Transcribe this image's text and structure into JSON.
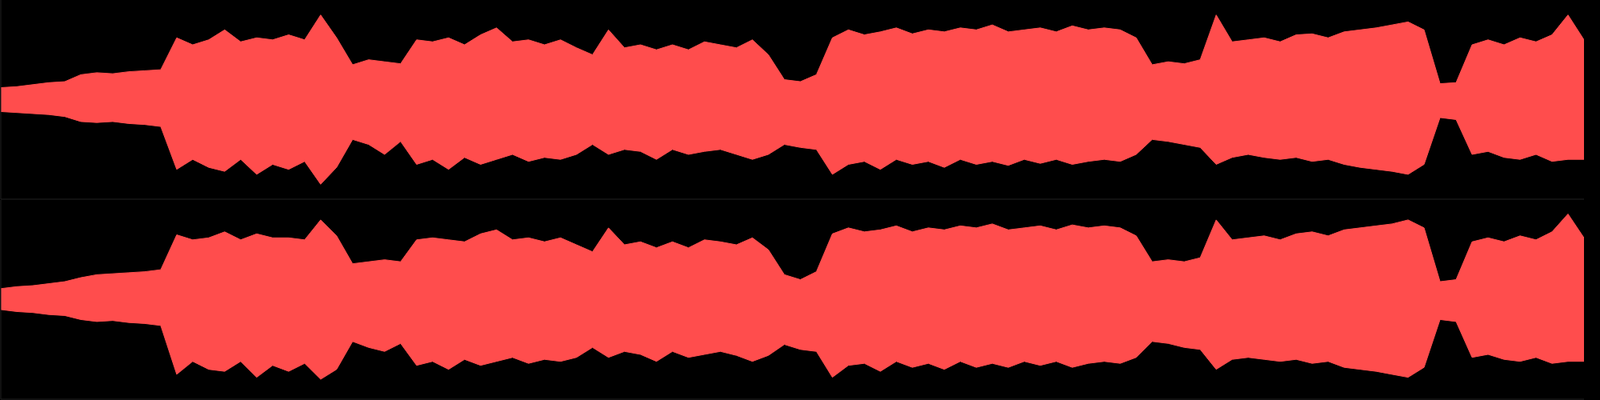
{
  "chart_data": [
    {
      "type": "area",
      "tick_labels": false,
      "color": "#ff4d4d",
      "xlim": [
        0,
        99
      ],
      "ylim": [
        -1,
        1
      ],
      "x": [
        0,
        1,
        2,
        3,
        4,
        5,
        6,
        7,
        8,
        9,
        10,
        11,
        12,
        13,
        14,
        15,
        16,
        17,
        18,
        19,
        20,
        21,
        22,
        23,
        24,
        25,
        26,
        27,
        28,
        29,
        30,
        31,
        32,
        33,
        34,
        35,
        36,
        37,
        38,
        39,
        40,
        41,
        42,
        43,
        44,
        45,
        46,
        47,
        48,
        49,
        50,
        51,
        52,
        53,
        54,
        55,
        56,
        57,
        58,
        59,
        60,
        61,
        62,
        63,
        64,
        65,
        66,
        67,
        68,
        69,
        70,
        71,
        72,
        73,
        74,
        75,
        76,
        77,
        78,
        79,
        80,
        81,
        82,
        83,
        84,
        85,
        86,
        87,
        88,
        89,
        90,
        91,
        92,
        93,
        94,
        95,
        96,
        97,
        98,
        99
      ],
      "values": [
        [
          -0.12,
          0.12
        ],
        [
          -0.13,
          0.13
        ],
        [
          -0.14,
          0.15
        ],
        [
          -0.15,
          0.17
        ],
        [
          -0.17,
          0.18
        ],
        [
          -0.22,
          0.25
        ],
        [
          -0.23,
          0.27
        ],
        [
          -0.22,
          0.26
        ],
        [
          -0.24,
          0.28
        ],
        [
          -0.25,
          0.29
        ],
        [
          -0.27,
          0.3
        ],
        [
          -0.7,
          0.62
        ],
        [
          -0.6,
          0.55
        ],
        [
          -0.68,
          0.6
        ],
        [
          -0.72,
          0.7
        ],
        [
          -0.6,
          0.58
        ],
        [
          -0.75,
          0.62
        ],
        [
          -0.65,
          0.6
        ],
        [
          -0.7,
          0.65
        ],
        [
          -0.62,
          0.6
        ],
        [
          -0.85,
          0.85
        ],
        [
          -0.68,
          0.62
        ],
        [
          -0.4,
          0.35
        ],
        [
          -0.45,
          0.4
        ],
        [
          -0.55,
          0.38
        ],
        [
          -0.42,
          0.36
        ],
        [
          -0.65,
          0.6
        ],
        [
          -0.6,
          0.58
        ],
        [
          -0.7,
          0.62
        ],
        [
          -0.58,
          0.55
        ],
        [
          -0.65,
          0.65
        ],
        [
          -0.6,
          0.72
        ],
        [
          -0.55,
          0.58
        ],
        [
          -0.62,
          0.6
        ],
        [
          -0.58,
          0.55
        ],
        [
          -0.6,
          0.6
        ],
        [
          -0.55,
          0.52
        ],
        [
          -0.45,
          0.45
        ],
        [
          -0.55,
          0.7
        ],
        [
          -0.5,
          0.52
        ],
        [
          -0.52,
          0.55
        ],
        [
          -0.6,
          0.5
        ],
        [
          -0.5,
          0.55
        ],
        [
          -0.55,
          0.5
        ],
        [
          -0.52,
          0.58
        ],
        [
          -0.5,
          0.55
        ],
        [
          -0.55,
          0.52
        ],
        [
          -0.6,
          0.6
        ],
        [
          -0.55,
          0.45
        ],
        [
          -0.45,
          0.2
        ],
        [
          -0.48,
          0.18
        ],
        [
          -0.5,
          0.25
        ],
        [
          -0.75,
          0.62
        ],
        [
          -0.65,
          0.7
        ],
        [
          -0.62,
          0.65
        ],
        [
          -0.7,
          0.68
        ],
        [
          -0.6,
          0.72
        ],
        [
          -0.65,
          0.66
        ],
        [
          -0.62,
          0.7
        ],
        [
          -0.68,
          0.68
        ],
        [
          -0.6,
          0.72
        ],
        [
          -0.65,
          0.7
        ],
        [
          -0.62,
          0.75
        ],
        [
          -0.66,
          0.68
        ],
        [
          -0.6,
          0.7
        ],
        [
          -0.64,
          0.72
        ],
        [
          -0.6,
          0.68
        ],
        [
          -0.65,
          0.74
        ],
        [
          -0.62,
          0.7
        ],
        [
          -0.6,
          0.72
        ],
        [
          -0.62,
          0.7
        ],
        [
          -0.55,
          0.62
        ],
        [
          -0.4,
          0.35
        ],
        [
          -0.42,
          0.38
        ],
        [
          -0.45,
          0.36
        ],
        [
          -0.48,
          0.4
        ],
        [
          -0.65,
          0.85
        ],
        [
          -0.58,
          0.58
        ],
        [
          -0.55,
          0.6
        ],
        [
          -0.58,
          0.62
        ],
        [
          -0.6,
          0.58
        ],
        [
          -0.58,
          0.65
        ],
        [
          -0.62,
          0.66
        ],
        [
          -0.6,
          0.62
        ],
        [
          -0.65,
          0.68
        ],
        [
          -0.68,
          0.7
        ],
        [
          -0.7,
          0.72
        ],
        [
          -0.72,
          0.75
        ],
        [
          -0.75,
          0.78
        ],
        [
          -0.65,
          0.7
        ],
        [
          -0.18,
          0.16
        ],
        [
          -0.2,
          0.17
        ],
        [
          -0.55,
          0.55
        ],
        [
          -0.52,
          0.6
        ],
        [
          -0.58,
          0.55
        ],
        [
          -0.6,
          0.62
        ],
        [
          -0.55,
          0.58
        ],
        [
          -0.62,
          0.65
        ],
        [
          -0.6,
          0.85
        ],
        [
          -0.6,
          0.6
        ]
      ]
    },
    {
      "type": "area",
      "tick_labels": false,
      "color": "#ff4d4d",
      "xlim": [
        0,
        99
      ],
      "ylim": [
        -1,
        1
      ],
      "x": [
        0,
        1,
        2,
        3,
        4,
        5,
        6,
        7,
        8,
        9,
        10,
        11,
        12,
        13,
        14,
        15,
        16,
        17,
        18,
        19,
        20,
        21,
        22,
        23,
        24,
        25,
        26,
        27,
        28,
        29,
        30,
        31,
        32,
        33,
        34,
        35,
        36,
        37,
        38,
        39,
        40,
        41,
        42,
        43,
        44,
        45,
        46,
        47,
        48,
        49,
        50,
        51,
        52,
        53,
        54,
        55,
        56,
        57,
        58,
        59,
        60,
        61,
        62,
        63,
        64,
        65,
        66,
        67,
        68,
        69,
        70,
        71,
        72,
        73,
        74,
        75,
        76,
        77,
        78,
        79,
        80,
        81,
        82,
        83,
        84,
        85,
        86,
        87,
        88,
        89,
        90,
        91,
        92,
        93,
        94,
        95,
        96,
        97,
        98,
        99
      ],
      "values": [
        [
          -0.1,
          0.11
        ],
        [
          -0.12,
          0.13
        ],
        [
          -0.13,
          0.14
        ],
        [
          -0.15,
          0.16
        ],
        [
          -0.16,
          0.18
        ],
        [
          -0.2,
          0.22
        ],
        [
          -0.22,
          0.25
        ],
        [
          -0.21,
          0.26
        ],
        [
          -0.23,
          0.27
        ],
        [
          -0.24,
          0.28
        ],
        [
          -0.26,
          0.3
        ],
        [
          -0.75,
          0.65
        ],
        [
          -0.62,
          0.6
        ],
        [
          -0.7,
          0.62
        ],
        [
          -0.72,
          0.68
        ],
        [
          -0.62,
          0.6
        ],
        [
          -0.78,
          0.66
        ],
        [
          -0.66,
          0.62
        ],
        [
          -0.72,
          0.62
        ],
        [
          -0.64,
          0.6
        ],
        [
          -0.8,
          0.8
        ],
        [
          -0.7,
          0.64
        ],
        [
          -0.42,
          0.36
        ],
        [
          -0.48,
          0.38
        ],
        [
          -0.52,
          0.4
        ],
        [
          -0.44,
          0.38
        ],
        [
          -0.66,
          0.6
        ],
        [
          -0.62,
          0.62
        ],
        [
          -0.7,
          0.6
        ],
        [
          -0.6,
          0.58
        ],
        [
          -0.66,
          0.66
        ],
        [
          -0.62,
          0.7
        ],
        [
          -0.58,
          0.6
        ],
        [
          -0.64,
          0.62
        ],
        [
          -0.6,
          0.58
        ],
        [
          -0.62,
          0.62
        ],
        [
          -0.58,
          0.55
        ],
        [
          -0.48,
          0.48
        ],
        [
          -0.58,
          0.72
        ],
        [
          -0.52,
          0.55
        ],
        [
          -0.55,
          0.58
        ],
        [
          -0.62,
          0.52
        ],
        [
          -0.52,
          0.58
        ],
        [
          -0.58,
          0.52
        ],
        [
          -0.55,
          0.6
        ],
        [
          -0.52,
          0.58
        ],
        [
          -0.56,
          0.55
        ],
        [
          -0.62,
          0.62
        ],
        [
          -0.56,
          0.5
        ],
        [
          -0.45,
          0.25
        ],
        [
          -0.5,
          0.2
        ],
        [
          -0.52,
          0.28
        ],
        [
          -0.78,
          0.66
        ],
        [
          -0.66,
          0.72
        ],
        [
          -0.64,
          0.68
        ],
        [
          -0.72,
          0.7
        ],
        [
          -0.62,
          0.74
        ],
        [
          -0.68,
          0.68
        ],
        [
          -0.64,
          0.72
        ],
        [
          -0.7,
          0.7
        ],
        [
          -0.62,
          0.74
        ],
        [
          -0.68,
          0.72
        ],
        [
          -0.64,
          0.76
        ],
        [
          -0.68,
          0.7
        ],
        [
          -0.62,
          0.72
        ],
        [
          -0.66,
          0.74
        ],
        [
          -0.62,
          0.7
        ],
        [
          -0.68,
          0.75
        ],
        [
          -0.64,
          0.72
        ],
        [
          -0.62,
          0.74
        ],
        [
          -0.64,
          0.72
        ],
        [
          -0.58,
          0.64
        ],
        [
          -0.42,
          0.38
        ],
        [
          -0.44,
          0.4
        ],
        [
          -0.48,
          0.38
        ],
        [
          -0.5,
          0.42
        ],
        [
          -0.7,
          0.8
        ],
        [
          -0.6,
          0.6
        ],
        [
          -0.58,
          0.62
        ],
        [
          -0.6,
          0.64
        ],
        [
          -0.62,
          0.6
        ],
        [
          -0.6,
          0.66
        ],
        [
          -0.64,
          0.68
        ],
        [
          -0.62,
          0.64
        ],
        [
          -0.68,
          0.7
        ],
        [
          -0.7,
          0.72
        ],
        [
          -0.72,
          0.74
        ],
        [
          -0.75,
          0.76
        ],
        [
          -0.78,
          0.8
        ],
        [
          -0.68,
          0.72
        ],
        [
          -0.2,
          0.18
        ],
        [
          -0.22,
          0.2
        ],
        [
          -0.58,
          0.58
        ],
        [
          -0.55,
          0.62
        ],
        [
          -0.6,
          0.58
        ],
        [
          -0.62,
          0.64
        ],
        [
          -0.58,
          0.6
        ],
        [
          -0.64,
          0.68
        ],
        [
          -0.62,
          0.86
        ],
        [
          -0.62,
          0.62
        ]
      ]
    }
  ]
}
